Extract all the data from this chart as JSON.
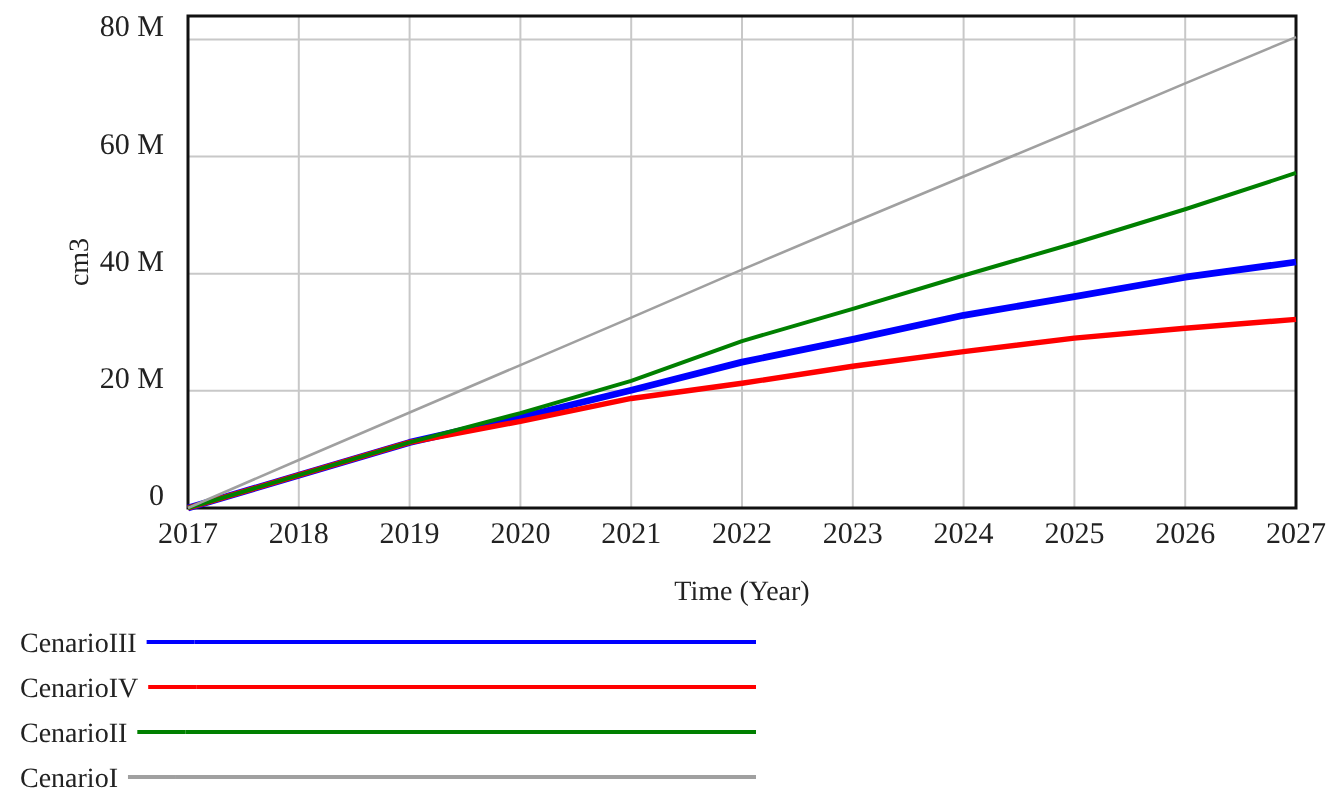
{
  "chart_data": {
    "type": "line",
    "xlabel": "Time (Year)",
    "ylabel": "cm3",
    "x": [
      2017,
      2018,
      2019,
      2020,
      2021,
      2022,
      2023,
      2024,
      2025,
      2026,
      2027
    ],
    "xlim": [
      2017,
      2027
    ],
    "xticks": [
      2017,
      2018,
      2019,
      2020,
      2021,
      2022,
      2023,
      2024,
      2025,
      2026,
      2027
    ],
    "ylim": [
      0,
      84
    ],
    "yticks": [
      {
        "value": 0,
        "label": "0"
      },
      {
        "value": 20,
        "label": "20 M"
      },
      {
        "value": 40,
        "label": "40 M"
      },
      {
        "value": 60,
        "label": "60 M"
      },
      {
        "value": 80,
        "label": "80 M"
      }
    ],
    "grid": true,
    "legend": "bottom",
    "marker": "none",
    "line_style": "solid",
    "series": [
      {
        "name": "CenarioIII",
        "color": "#0000ff",
        "values": [
          0,
          5.6,
          11.2,
          15.5,
          20.1,
          24.9,
          28.8,
          32.9,
          36.1,
          39.4,
          42
        ]
      },
      {
        "name": "CenarioIV",
        "color": "#ff0000",
        "values": [
          0,
          5.6,
          11.2,
          14.8,
          18.7,
          21.3,
          24.2,
          26.7,
          29,
          30.7,
          32.2
        ]
      },
      {
        "name": "CenarioII",
        "color": "#008000",
        "values": [
          0,
          5.6,
          11.2,
          16.2,
          21.7,
          28.5,
          34,
          39.7,
          45.2,
          51,
          57.2
        ]
      },
      {
        "name": "CenarioI",
        "color": "#a0a0a0",
        "values": [
          0,
          8.2,
          16.3,
          24.4,
          32.5,
          40.7,
          48.7,
          56.6,
          64.5,
          72.5,
          80.4
        ]
      }
    ]
  }
}
